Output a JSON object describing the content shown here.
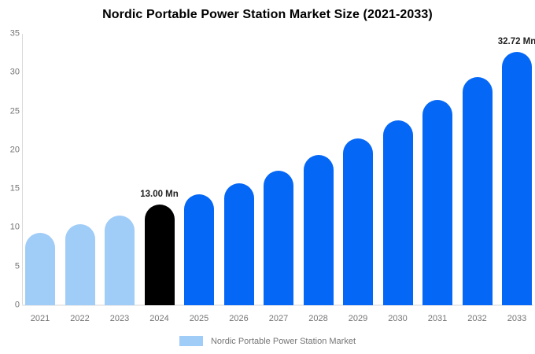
{
  "chart_data": {
    "type": "bar",
    "title": "Nordic Portable Power Station Market Size (2021-2033)",
    "categories": [
      "2021",
      "2022",
      "2023",
      "2024",
      "2025",
      "2026",
      "2027",
      "2028",
      "2029",
      "2030",
      "2031",
      "2032",
      "2033"
    ],
    "values": [
      9.3,
      10.5,
      11.6,
      13.0,
      14.3,
      15.7,
      17.4,
      19.4,
      21.5,
      23.8,
      26.5,
      29.4,
      32.72
    ],
    "unit": "Mn",
    "xlabel": "",
    "ylabel": "",
    "ylim": [
      0,
      35
    ],
    "yticks": [
      0,
      5,
      10,
      15,
      20,
      25,
      30,
      35
    ],
    "grid": false,
    "bar_colors": [
      "#a0ccf8",
      "#a0ccf8",
      "#a0ccf8",
      "#000000",
      "#0567f6",
      "#0567f6",
      "#0567f6",
      "#0567f6",
      "#0567f6",
      "#0567f6",
      "#0567f6",
      "#0567f6",
      "#0567f6"
    ],
    "annotations": [
      {
        "category": "2024",
        "text": "13.00 Mn"
      },
      {
        "category": "2033",
        "text": "32.72 Mn"
      }
    ],
    "legend": {
      "position": "bottom",
      "label": "Nordic Portable Power Station Market",
      "swatch_color": "#a0ccf8"
    },
    "colors": {
      "historical_bar": "#a0ccf8",
      "base_year_bar": "#000000",
      "forecast_bar": "#0567f6",
      "axis_text": "#757575",
      "annotation_text": "#222222",
      "title_text": "#000000"
    }
  }
}
